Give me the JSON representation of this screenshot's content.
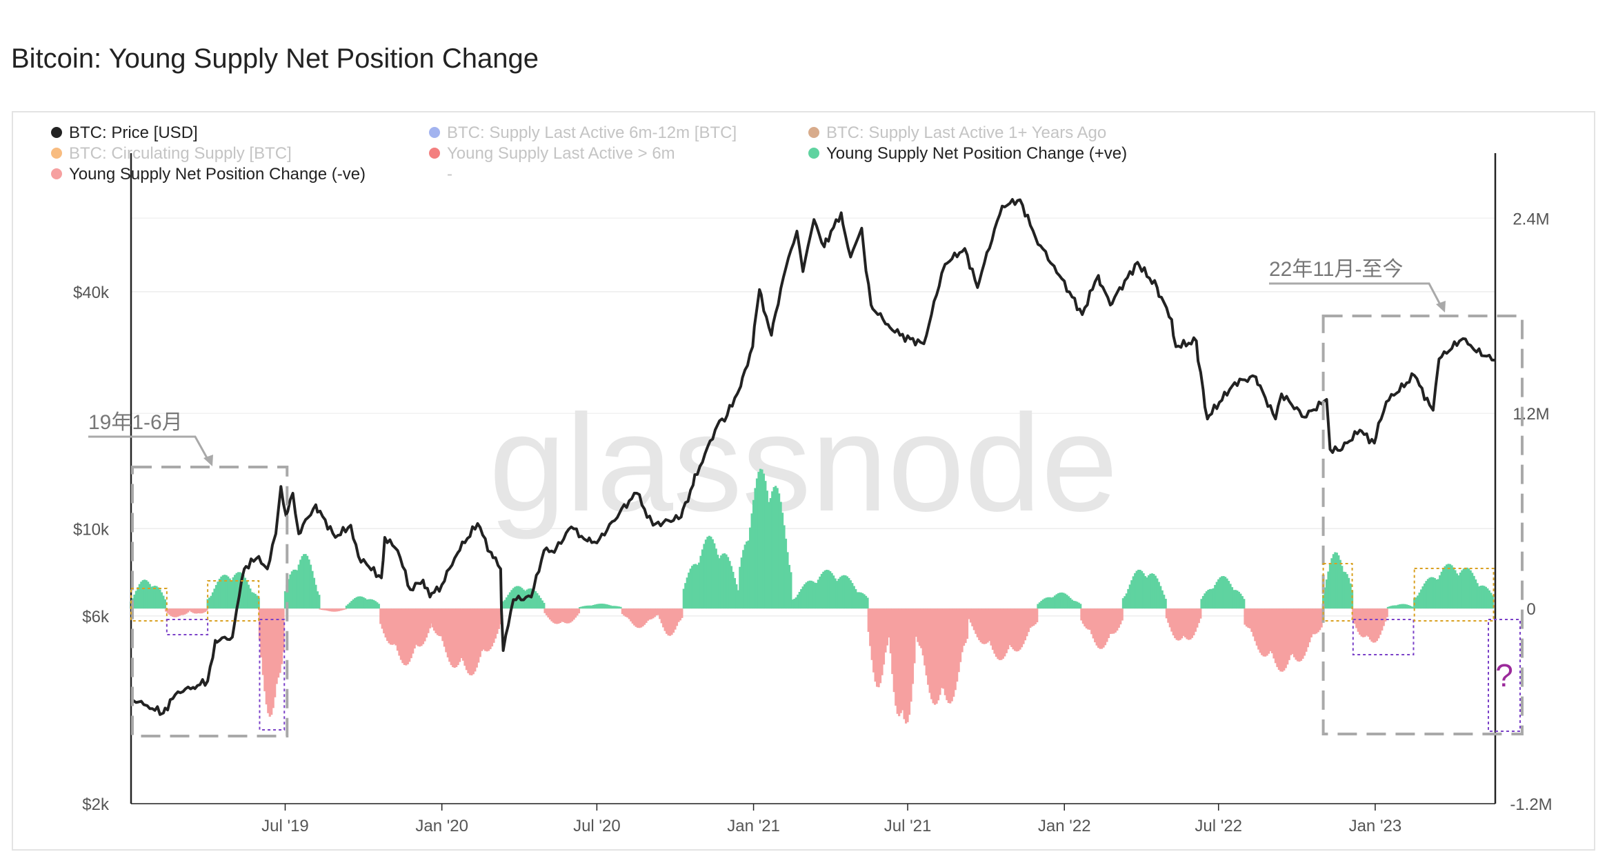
{
  "chart_data": {
    "type": "line",
    "title": "Bitcoin: Young Supply Net Position Change",
    "watermark": "glassnode",
    "legend": [
      {
        "name": "BTC: Price [USD]",
        "color": "#222222",
        "active": true
      },
      {
        "name": "BTC: Supply Last Active 6m-12m [BTC]",
        "color": "#7b93e8",
        "active": false
      },
      {
        "name": "BTC: Supply Last Active 1+ Years Ago",
        "color": "#c8875a",
        "active": false
      },
      {
        "name": "BTC: Circulating Supply [BTC]",
        "color": "#f5a04a",
        "active": false
      },
      {
        "name": "Young Supply Last Active > 6m",
        "color": "#ee4848",
        "active": false
      },
      {
        "name": "Young Supply Net Position Change (+ve)",
        "color": "#5fd3a0",
        "active": true
      },
      {
        "name": "Young Supply Net Position Change (-ve)",
        "color": "#f6a0a0",
        "active": true
      },
      {
        "name": "-",
        "color": "",
        "active": false
      }
    ],
    "x_axis": {
      "type": "date",
      "range": [
        "2019-01-01",
        "2023-05-22"
      ],
      "ticks": [
        {
          "label": "Jul '19",
          "date": "2019-07-01"
        },
        {
          "label": "Jan '20",
          "date": "2020-01-01"
        },
        {
          "label": "Jul '20",
          "date": "2020-07-01"
        },
        {
          "label": "Jan '21",
          "date": "2021-01-01"
        },
        {
          "label": "Jul '21",
          "date": "2021-07-01"
        },
        {
          "label": "Jan '22",
          "date": "2022-01-01"
        },
        {
          "label": "Jul '22",
          "date": "2022-07-01"
        },
        {
          "label": "Jan '23",
          "date": "2023-01-01"
        }
      ]
    },
    "y_axis_left": {
      "label": "",
      "scale": "log",
      "range": [
        2000,
        90000
      ],
      "ticks": [
        {
          "label": "$2k",
          "value": 2000
        },
        {
          "label": "$6k",
          "value": 6000
        },
        {
          "label": "$10k",
          "value": 10000
        },
        {
          "label": "$40k",
          "value": 40000
        }
      ]
    },
    "y_axis_right": {
      "label": "",
      "scale": "linear",
      "range": [
        -1200000,
        2800000
      ],
      "ticks": [
        {
          "label": "-1.2M",
          "value": -1200000
        },
        {
          "label": "0",
          "value": 0
        },
        {
          "label": "1.2M",
          "value": 1200000
        },
        {
          "label": "2.4M",
          "value": 2400000
        }
      ]
    },
    "price_series": {
      "name": "BTC: Price [USD]",
      "points": [
        [
          "2019-01-01",
          3700
        ],
        [
          "2019-01-20",
          3550
        ],
        [
          "2019-02-08",
          3400
        ],
        [
          "2019-02-25",
          3850
        ],
        [
          "2019-03-15",
          3950
        ],
        [
          "2019-04-01",
          4100
        ],
        [
          "2019-04-10",
          5200
        ],
        [
          "2019-04-30",
          5300
        ],
        [
          "2019-05-14",
          7900
        ],
        [
          "2019-05-31",
          8500
        ],
        [
          "2019-06-10",
          7900
        ],
        [
          "2019-06-20",
          9700
        ],
        [
          "2019-06-26",
          12800
        ],
        [
          "2019-07-02",
          10800
        ],
        [
          "2019-07-10",
          12300
        ],
        [
          "2019-07-17",
          9700
        ],
        [
          "2019-08-06",
          11500
        ],
        [
          "2019-08-29",
          9500
        ],
        [
          "2019-09-16",
          10200
        ],
        [
          "2019-09-25",
          8500
        ],
        [
          "2019-10-05",
          8100
        ],
        [
          "2019-10-22",
          7500
        ],
        [
          "2019-10-26",
          9500
        ],
        [
          "2019-11-10",
          8800
        ],
        [
          "2019-11-25",
          7000
        ],
        [
          "2019-12-10",
          7400
        ],
        [
          "2019-12-18",
          6700
        ],
        [
          "2020-01-01",
          7200
        ],
        [
          "2020-01-20",
          8700
        ],
        [
          "2020-02-12",
          10300
        ],
        [
          "2020-02-28",
          8700
        ],
        [
          "2020-03-10",
          7900
        ],
        [
          "2020-03-13",
          4900
        ],
        [
          "2020-03-25",
          6600
        ],
        [
          "2020-04-15",
          6700
        ],
        [
          "2020-04-30",
          8800
        ],
        [
          "2020-05-12",
          8700
        ],
        [
          "2020-06-01",
          10100
        ],
        [
          "2020-06-20",
          9300
        ],
        [
          "2020-07-01",
          9200
        ],
        [
          "2020-07-28",
          11000
        ],
        [
          "2020-08-17",
          12300
        ],
        [
          "2020-09-05",
          10200
        ],
        [
          "2020-10-08",
          10700
        ],
        [
          "2020-10-22",
          12900
        ],
        [
          "2020-11-05",
          15500
        ],
        [
          "2020-11-20",
          18400
        ],
        [
          "2020-12-01",
          19400
        ],
        [
          "2020-12-17",
          23000
        ],
        [
          "2020-12-31",
          29000
        ],
        [
          "2021-01-08",
          40500
        ],
        [
          "2021-01-22",
          31000
        ],
        [
          "2021-02-08",
          46000
        ],
        [
          "2021-02-21",
          57000
        ],
        [
          "2021-02-28",
          45000
        ],
        [
          "2021-03-13",
          61000
        ],
        [
          "2021-03-25",
          52000
        ],
        [
          "2021-04-14",
          63500
        ],
        [
          "2021-04-25",
          49000
        ],
        [
          "2021-05-08",
          58000
        ],
        [
          "2021-05-19",
          37000
        ],
        [
          "2021-06-08",
          33000
        ],
        [
          "2021-06-22",
          31000
        ],
        [
          "2021-07-20",
          29500
        ],
        [
          "2021-08-14",
          47000
        ],
        [
          "2021-09-06",
          51500
        ],
        [
          "2021-09-21",
          41000
        ],
        [
          "2021-10-20",
          66000
        ],
        [
          "2021-11-10",
          68500
        ],
        [
          "2021-11-28",
          55000
        ],
        [
          "2021-12-20",
          46500
        ],
        [
          "2022-01-22",
          35000
        ],
        [
          "2022-02-10",
          44000
        ],
        [
          "2022-02-24",
          37000
        ],
        [
          "2022-03-28",
          47500
        ],
        [
          "2022-04-20",
          41000
        ],
        [
          "2022-05-07",
          34000
        ],
        [
          "2022-05-12",
          29000
        ],
        [
          "2022-06-05",
          30000
        ],
        [
          "2022-06-13",
          22500
        ],
        [
          "2022-06-18",
          19000
        ],
        [
          "2022-07-20",
          23500
        ],
        [
          "2022-08-14",
          24300
        ],
        [
          "2022-09-06",
          19000
        ],
        [
          "2022-09-13",
          22000
        ],
        [
          "2022-10-10",
          19200
        ],
        [
          "2022-11-05",
          21300
        ],
        [
          "2022-11-09",
          15900
        ],
        [
          "2022-11-21",
          15800
        ],
        [
          "2022-12-14",
          17800
        ],
        [
          "2022-12-31",
          16500
        ],
        [
          "2023-01-14",
          21000
        ],
        [
          "2023-02-16",
          24500
        ],
        [
          "2023-03-10",
          20000
        ],
        [
          "2023-03-17",
          27000
        ],
        [
          "2023-04-14",
          30400
        ],
        [
          "2023-04-27",
          28500
        ],
        [
          "2023-05-22",
          26800
        ]
      ]
    },
    "net_position_change_series": {
      "positive_name": "Young Supply Net Position Change (+ve)",
      "negative_name": "Young Supply Net Position Change (-ve)",
      "unit": "BTC",
      "segments": [
        [
          "2019-01-01",
          "2019-02-10",
          190000
        ],
        [
          "2019-02-11",
          "2019-03-10",
          -60000
        ],
        [
          "2019-03-11",
          "2019-03-31",
          -40000
        ],
        [
          "2019-04-01",
          "2019-05-31",
          240000
        ],
        [
          "2019-06-01",
          "2019-06-30",
          -700000
        ],
        [
          "2019-07-01",
          "2019-08-10",
          350000
        ],
        [
          "2019-08-11",
          "2019-09-10",
          -20000
        ],
        [
          "2019-09-11",
          "2019-10-20",
          80000
        ],
        [
          "2019-10-21",
          "2019-12-20",
          -350000
        ],
        [
          "2019-12-21",
          "2020-03-10",
          -420000
        ],
        [
          "2020-03-11",
          "2020-04-30",
          150000
        ],
        [
          "2020-05-01",
          "2020-06-10",
          -110000
        ],
        [
          "2020-06-11",
          "2020-07-30",
          30000
        ],
        [
          "2020-07-31",
          "2020-09-10",
          -120000
        ],
        [
          "2020-09-11",
          "2020-10-10",
          -170000
        ],
        [
          "2020-10-11",
          "2020-12-15",
          450000
        ],
        [
          "2020-12-16",
          "2021-02-15",
          900000
        ],
        [
          "2021-02-16",
          "2021-05-15",
          240000
        ],
        [
          "2021-05-16",
          "2021-06-10",
          -500000
        ],
        [
          "2021-06-11",
          "2021-07-10",
          -850000
        ],
        [
          "2021-07-11",
          "2021-09-10",
          -650000
        ],
        [
          "2021-09-11",
          "2021-11-30",
          -320000
        ],
        [
          "2021-12-01",
          "2022-01-20",
          100000
        ],
        [
          "2022-01-21",
          "2022-03-10",
          -250000
        ],
        [
          "2022-03-11",
          "2022-04-30",
          260000
        ],
        [
          "2022-05-01",
          "2022-06-10",
          -230000
        ],
        [
          "2022-06-11",
          "2022-07-31",
          200000
        ],
        [
          "2022-08-01",
          "2022-10-31",
          -390000
        ],
        [
          "2022-11-01",
          "2022-12-05",
          360000
        ],
        [
          "2022-12-06",
          "2023-01-15",
          -230000
        ],
        [
          "2023-01-16",
          "2023-02-15",
          30000
        ],
        [
          "2023-02-16",
          "2023-05-20",
          280000
        ]
      ]
    },
    "annotations": [
      {
        "text": "19年1-6月",
        "color": "#777777"
      },
      {
        "text": "22年11月-至今",
        "color": "#777777"
      },
      {
        "text": "?",
        "color": "#9b2a9b"
      }
    ]
  }
}
